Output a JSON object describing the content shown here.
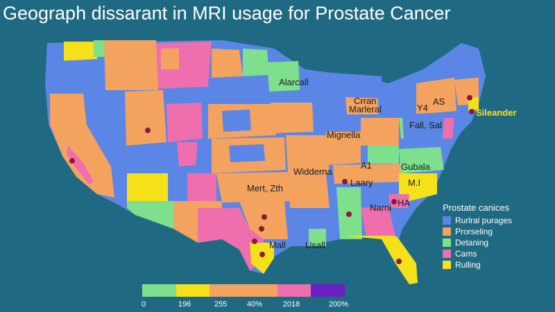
{
  "title": "Geograph dissarant in MRI usage for Prostate Cancer",
  "colors": {
    "background": "#1f6a82",
    "blue": "#5b86e6",
    "orange": "#f4a35f",
    "green": "#7ee08c",
    "pink": "#ef6fae",
    "yellow": "#f5e11a",
    "purple": "#6a1fc2",
    "marker": "#8a1a3a"
  },
  "map_labels": [
    {
      "text": "Alarcall"
    },
    {
      "text": "Crran"
    },
    {
      "text": "Marleral"
    },
    {
      "text": "Y4"
    },
    {
      "text": "AS"
    },
    {
      "text": "Sileander",
      "highlight": true
    },
    {
      "text": "Fall, Sal"
    },
    {
      "text": "Mignella"
    },
    {
      "text": "A1"
    },
    {
      "text": "Gubala"
    },
    {
      "text": "Widderna"
    },
    {
      "text": "Laary"
    },
    {
      "text": "M.I"
    },
    {
      "text": "Mert, Zth"
    },
    {
      "text": "Narni"
    },
    {
      "text": "HA"
    },
    {
      "text": "Mall"
    },
    {
      "text": "Usall"
    }
  ],
  "legend": {
    "title": "Prostate canices",
    "items": [
      {
        "label": "Rurlral purages",
        "color": "#5b86e6"
      },
      {
        "label": "Prorseling",
        "color": "#f4a35f"
      },
      {
        "label": "Detaning",
        "color": "#7ee08c"
      },
      {
        "label": "Cams",
        "color": "#ef6fae"
      },
      {
        "label": "Rulling",
        "color": "#f5e11a"
      }
    ]
  },
  "scale": {
    "colors": [
      "#7ee08c",
      "#f5e11a",
      "#f4a35f",
      "#f4a35f",
      "#ef6fae",
      "#6a1fc2"
    ],
    "labels": [
      "0",
      "196",
      "255",
      "40%",
      "2018",
      "200%"
    ]
  }
}
